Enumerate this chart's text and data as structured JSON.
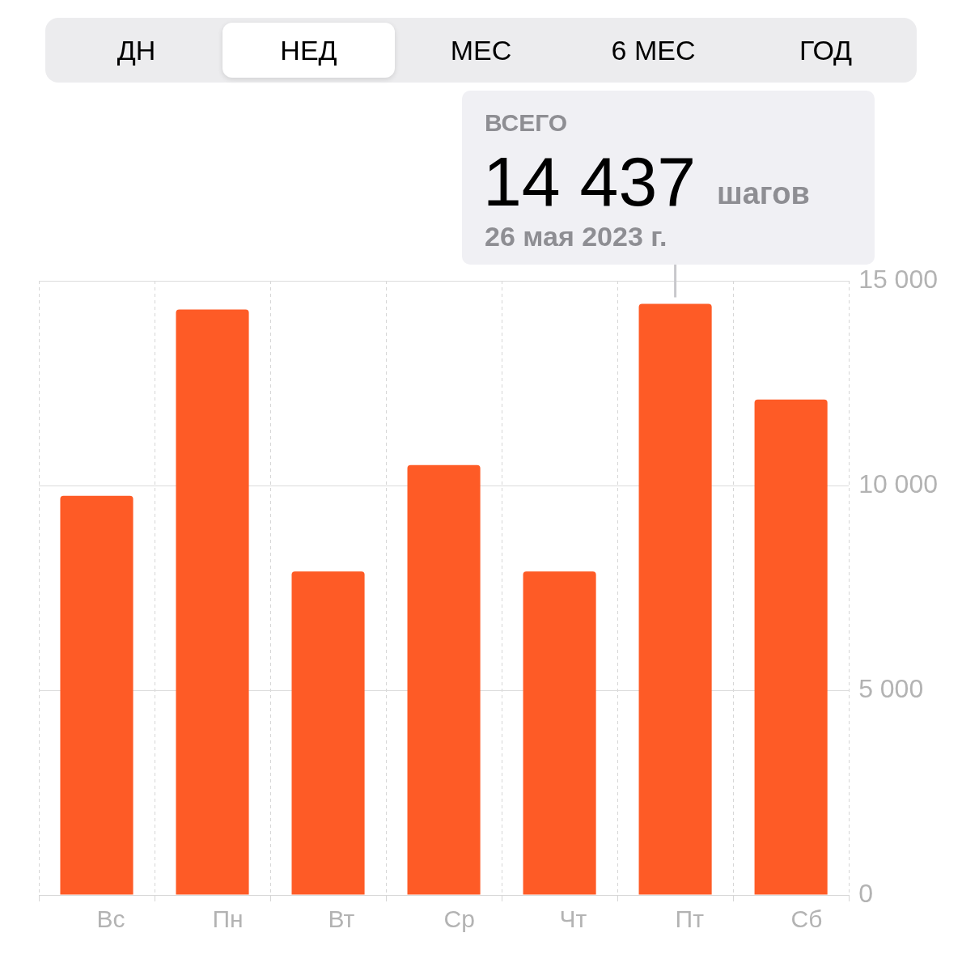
{
  "chart_data": {
    "type": "bar",
    "categories": [
      "Вс",
      "Пн",
      "Вт",
      "Ср",
      "Чт",
      "Пт",
      "Сб"
    ],
    "values": [
      9750,
      14300,
      7900,
      10500,
      7900,
      14437,
      12100
    ],
    "color": "#fe5b26",
    "ylim": [
      0,
      15000
    ],
    "yticks": [
      {
        "value": 0,
        "label": "0"
      },
      {
        "value": 5000,
        "label": "5 000"
      },
      {
        "value": 10000,
        "label": "10 000"
      },
      {
        "value": 15000,
        "label": "15 000"
      }
    ],
    "grid": true,
    "annotations": [
      "ДН",
      "НЕД",
      "МЕС",
      "6 МЕС",
      "ГОД",
      "ВСЕГО",
      {
        "text": "14 437 шагов",
        "x": "Пт",
        "y": 14437
      },
      "26 мая 2023 г."
    ]
  }
}
